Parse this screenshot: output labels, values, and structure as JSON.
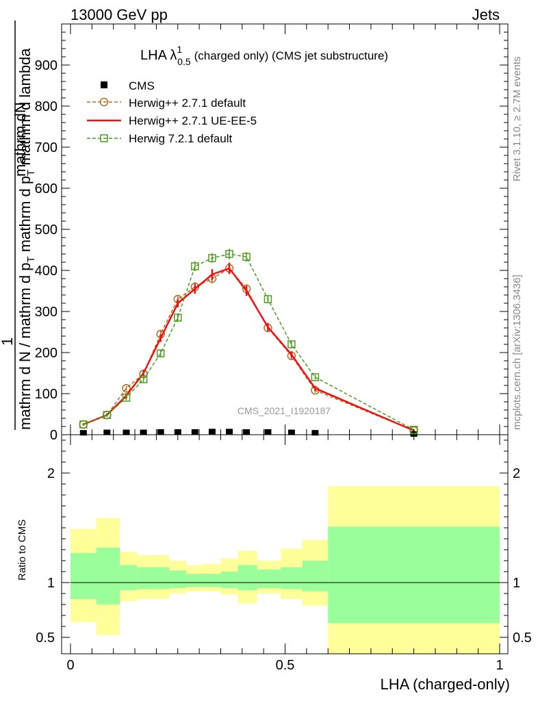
{
  "header": {
    "left": "13000 GeV pp",
    "right": "Jets"
  },
  "title_parts": {
    "prefix": "LHA λ",
    "sup": "1",
    "sub": "0.5",
    "suffix": "(charged only) (CMS jet substructure)"
  },
  "side_labels": {
    "rivet": "Rivet 3.1.10, ≥ 2.7M events",
    "mcplots": "mcplots.cern.ch [arXiv:1306.3436]"
  },
  "watermark": "CMS_2021_I1920187",
  "ylabel_parts": {
    "numerator": "1",
    "denominator": "mathrm d N / mathrm d p",
    "denominator_sub": "T",
    "denominator_tail": " mathrm d p",
    "tail_sub": "T",
    "tail_end": " mathrm d lambda",
    "alt_num": "mathrm d",
    "alt_num2": "N"
  },
  "ratio_ylabel": "Ratio to CMS",
  "xlabel": "LHA (charged-only)",
  "chart_data": {
    "type": "line",
    "main": {
      "xlim": [
        0,
        1
      ],
      "ylim": [
        0,
        1000
      ],
      "yticks": [
        0,
        100,
        200,
        300,
        400,
        500,
        600,
        700,
        800,
        900
      ],
      "yticklabels": [
        "0",
        "100",
        "200",
        "300",
        "400",
        "500",
        "600",
        "700",
        "800",
        "900"
      ],
      "legend_position": "top-left",
      "series": [
        {
          "name": "CMS",
          "kind": "data",
          "color": "#000000",
          "x": [
            0.03,
            0.085,
            0.13,
            0.17,
            0.21,
            0.25,
            0.29,
            0.33,
            0.37,
            0.41,
            0.46,
            0.515,
            0.57,
            0.8
          ],
          "values": [
            3,
            4,
            4,
            4,
            5,
            5,
            5,
            6,
            6,
            5,
            5,
            4,
            3,
            0
          ]
        },
        {
          "name": "Herwig++ 2.7.1 default",
          "kind": "mc",
          "color": "#b36b1e",
          "marker": "circle",
          "dash": "5,3",
          "x": [
            0.03,
            0.085,
            0.13,
            0.17,
            0.21,
            0.25,
            0.29,
            0.33,
            0.37,
            0.41,
            0.46,
            0.515,
            0.57,
            0.8
          ],
          "values": [
            25,
            48,
            113,
            148,
            245,
            330,
            360,
            380,
            405,
            355,
            260,
            192,
            108,
            10
          ],
          "err": [
            3,
            4,
            6,
            7,
            9,
            10,
            11,
            11,
            12,
            11,
            9,
            8,
            6,
            2
          ]
        },
        {
          "name": "Herwig++ 2.7.1 UE-EE-5",
          "kind": "mc",
          "color": "#ee1111",
          "marker": "none",
          "dash": "",
          "x": [
            0.03,
            0.085,
            0.13,
            0.17,
            0.21,
            0.25,
            0.29,
            0.33,
            0.37,
            0.41,
            0.46,
            0.515,
            0.57,
            0.8
          ],
          "values": [
            25,
            48,
            95,
            150,
            235,
            320,
            355,
            390,
            405,
            350,
            262,
            195,
            113,
            10
          ],
          "err": [
            3,
            4,
            6,
            7,
            9,
            10,
            12,
            13,
            14,
            12,
            10,
            8,
            6,
            2
          ]
        },
        {
          "name": "Herwig 7.2.1 default",
          "kind": "mc",
          "color": "#4a9e1e",
          "marker": "square",
          "dash": "5,3",
          "x": [
            0.03,
            0.085,
            0.13,
            0.17,
            0.21,
            0.25,
            0.29,
            0.33,
            0.37,
            0.41,
            0.46,
            0.515,
            0.57,
            0.8
          ],
          "values": [
            25,
            48,
            90,
            135,
            198,
            285,
            410,
            430,
            440,
            433,
            330,
            220,
            140,
            12
          ],
          "err": [
            3,
            4,
            6,
            7,
            9,
            10,
            12,
            12,
            13,
            12,
            10,
            9,
            6,
            2
          ]
        }
      ]
    },
    "ratio": {
      "xlim": [
        0,
        1
      ],
      "ylim": [
        0.35,
        2.35
      ],
      "yticks": [
        0.5,
        1,
        2
      ],
      "yticklabels": [
        "0.5",
        "1",
        "2"
      ],
      "xticks": [
        0,
        0.5,
        1
      ],
      "xticklabels": [
        "0",
        "0.5",
        "1"
      ],
      "bins": [
        {
          "lo": 0.0,
          "hi": 0.06,
          "green": [
            0.85,
            1.27
          ],
          "yellow": [
            0.64,
            1.49
          ]
        },
        {
          "lo": 0.06,
          "hi": 0.115,
          "green": [
            0.8,
            1.32
          ],
          "yellow": [
            0.52,
            1.59
          ]
        },
        {
          "lo": 0.115,
          "hi": 0.155,
          "green": [
            0.93,
            1.16
          ],
          "yellow": [
            0.83,
            1.28
          ]
        },
        {
          "lo": 0.155,
          "hi": 0.19,
          "green": [
            0.94,
            1.14
          ],
          "yellow": [
            0.85,
            1.25
          ]
        },
        {
          "lo": 0.19,
          "hi": 0.23,
          "green": [
            0.94,
            1.14
          ],
          "yellow": [
            0.85,
            1.25
          ]
        },
        {
          "lo": 0.23,
          "hi": 0.27,
          "green": [
            0.95,
            1.11
          ],
          "yellow": [
            0.9,
            1.2
          ]
        },
        {
          "lo": 0.27,
          "hi": 0.31,
          "green": [
            0.96,
            1.08
          ],
          "yellow": [
            0.92,
            1.16
          ]
        },
        {
          "lo": 0.31,
          "hi": 0.35,
          "green": [
            0.96,
            1.08
          ],
          "yellow": [
            0.92,
            1.17
          ]
        },
        {
          "lo": 0.35,
          "hi": 0.39,
          "green": [
            0.95,
            1.1
          ],
          "yellow": [
            0.89,
            1.22
          ]
        },
        {
          "lo": 0.39,
          "hi": 0.435,
          "green": [
            0.93,
            1.16
          ],
          "yellow": [
            0.81,
            1.29
          ]
        },
        {
          "lo": 0.435,
          "hi": 0.49,
          "green": [
            0.95,
            1.12
          ],
          "yellow": [
            0.9,
            1.2
          ]
        },
        {
          "lo": 0.49,
          "hi": 0.54,
          "green": [
            0.94,
            1.14
          ],
          "yellow": [
            0.85,
            1.31
          ]
        },
        {
          "lo": 0.54,
          "hi": 0.6,
          "green": [
            0.92,
            1.2
          ],
          "yellow": [
            0.79,
            1.39
          ]
        },
        {
          "lo": 0.6,
          "hi": 1.0,
          "green": [
            0.63,
            1.51
          ],
          "yellow": [
            0.35,
            1.88
          ]
        }
      ]
    },
    "colors": {
      "green_band": "#9aff9a",
      "yellow_band": "#ffff99",
      "ref_line": "#000000"
    }
  }
}
